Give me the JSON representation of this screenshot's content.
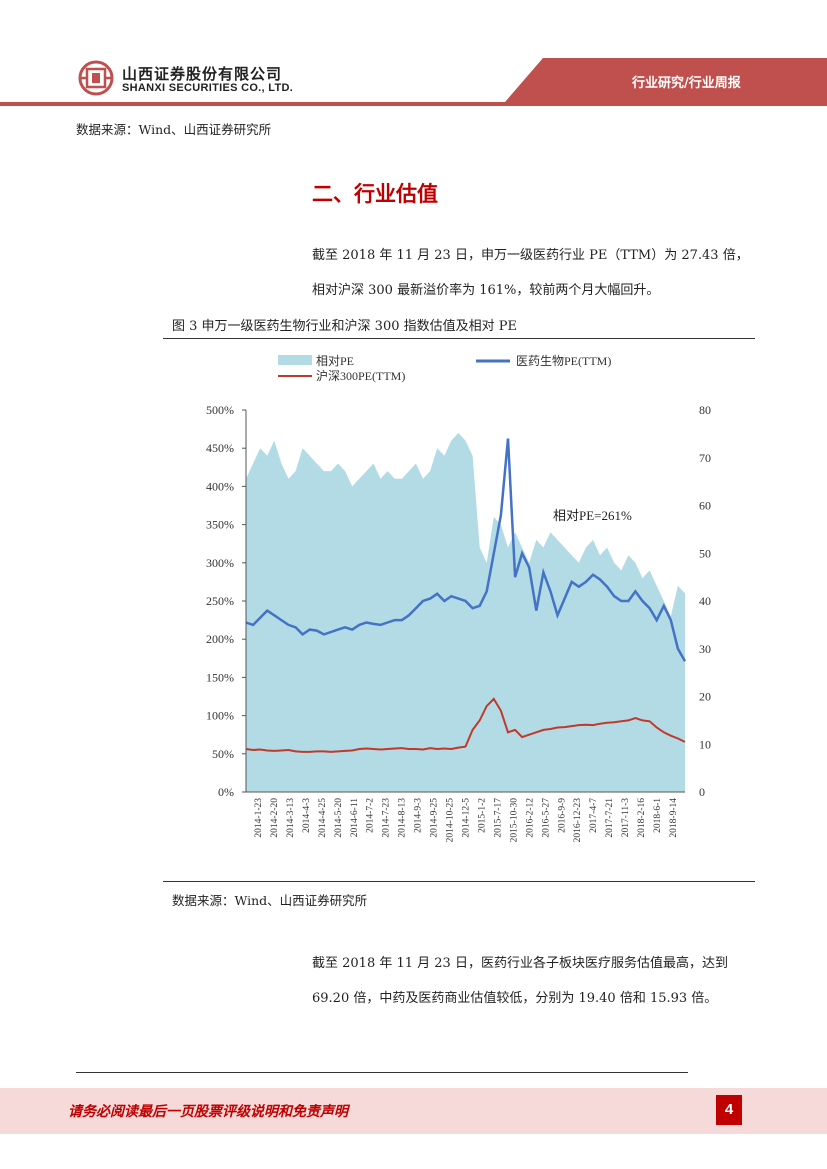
{
  "header": {
    "company_cn": "山西证券股份有限公司",
    "company_en": "SHANXI SECURITIES CO., LTD.",
    "report_tag": "行业研究/行业周报",
    "brand_color": "#c0504d"
  },
  "source_top": "数据来源：Wind、山西证券研究所",
  "section": {
    "title": "二、行业估值"
  },
  "paragraph1": {
    "line1": "截至 2018 年 11 月 23 日，申万一级医药行业 PE（TTM）为 27.43 倍，",
    "line2": "相对沪深 300 最新溢价率为 161%，较前两个月大幅回升。"
  },
  "figure": {
    "title": "图 3  申万一级医药生物行业和沪深 300 指数估值及相对 PE",
    "source": "数据来源：Wind、山西证券研究所"
  },
  "chart_data": {
    "type": "area",
    "title": "",
    "legend": [
      "相对PE",
      "医药生物PE(TTM)",
      "沪深300PE(TTM)"
    ],
    "legend_position": "top",
    "annotation": "相对PE=261%",
    "y_left": {
      "ticks": [
        "0%",
        "50%",
        "100%",
        "150%",
        "200%",
        "250%",
        "300%",
        "350%",
        "400%",
        "450%",
        "500%"
      ],
      "range": [
        0,
        5
      ]
    },
    "y_right": {
      "ticks": [
        "0",
        "10",
        "20",
        "30",
        "40",
        "50",
        "60",
        "70",
        "80"
      ],
      "range": [
        0,
        80
      ]
    },
    "x_tick_labels": [
      "2014-1-23",
      "2014-2-20",
      "2014-3-13",
      "2014-4-3",
      "2014-4-25",
      "2014-5-20",
      "2014-6-11",
      "2014-7-2",
      "2014-7-23",
      "2014-8-13",
      "2014-9-3",
      "2014-9-25",
      "2014-10-25",
      "2014-12-5",
      "2015-1-2",
      "2015-7-17",
      "2015-10-30",
      "2016-2-12",
      "2016-5-27",
      "2016-9-9",
      "2016-12-23",
      "2017-4-7",
      "2017-7-21",
      "2017-11-3",
      "2018-2-16",
      "2018-6-1",
      "2018-9-14"
    ],
    "relative_pe": [
      4.1,
      4.3,
      4.5,
      4.4,
      4.6,
      4.3,
      4.1,
      4.2,
      4.5,
      4.4,
      4.3,
      4.2,
      4.2,
      4.3,
      4.2,
      4.0,
      4.1,
      4.2,
      4.3,
      4.1,
      4.2,
      4.1,
      4.1,
      4.2,
      4.3,
      4.1,
      4.2,
      4.5,
      4.4,
      4.6,
      4.7,
      4.6,
      4.4,
      3.2,
      3.0,
      3.6,
      3.5,
      3.2,
      3.4,
      3.2,
      3.0,
      3.3,
      3.2,
      3.4,
      3.3,
      3.2,
      3.1,
      3.0,
      3.2,
      3.3,
      3.1,
      3.2,
      3.0,
      2.9,
      3.1,
      3.0,
      2.8,
      2.9,
      2.7,
      2.5,
      2.3,
      2.7,
      2.6
    ],
    "pharma_pe": [
      35.5,
      35.0,
      36.5,
      38.0,
      37.0,
      36.0,
      35.0,
      34.5,
      33.0,
      34.0,
      33.8,
      33.0,
      33.5,
      34.0,
      34.5,
      34.0,
      35.0,
      35.5,
      35.2,
      35.0,
      35.5,
      36.0,
      36.0,
      37.0,
      38.5,
      40.0,
      40.5,
      41.5,
      40.0,
      41.0,
      40.5,
      40.0,
      38.5,
      39.0,
      42.0,
      50.0,
      58.0,
      74.0,
      45.0,
      50.0,
      47.0,
      38.0,
      46.0,
      42.0,
      37.0,
      40.5,
      44.0,
      43.0,
      44.0,
      45.5,
      44.5,
      43.0,
      41.0,
      40.0,
      40.0,
      42.0,
      40.0,
      38.5,
      36.0,
      39.0,
      36.0,
      30.0,
      27.4
    ],
    "hs300_pe": [
      9.0,
      8.8,
      8.9,
      8.7,
      8.6,
      8.7,
      8.8,
      8.5,
      8.4,
      8.4,
      8.5,
      8.5,
      8.4,
      8.5,
      8.6,
      8.7,
      9.0,
      9.1,
      9.0,
      8.9,
      9.0,
      9.1,
      9.2,
      9.0,
      9.0,
      8.9,
      9.2,
      9.0,
      9.1,
      9.0,
      9.3,
      9.5,
      13.0,
      15.0,
      18.0,
      19.5,
      17.0,
      12.5,
      13.0,
      11.5,
      12.0,
      12.5,
      13.0,
      13.2,
      13.5,
      13.6,
      13.8,
      14.0,
      14.1,
      14.0,
      14.3,
      14.5,
      14.6,
      14.8,
      15.0,
      15.5,
      15.0,
      14.8,
      13.5,
      12.5,
      11.8,
      11.2,
      10.5
    ]
  },
  "paragraph2": {
    "line1": "截至 2018 年 11 月 23 日，医药行业各子板块医疗服务估值最高，达到",
    "line2": "69.20 倍，中药及医药商业估值较低，分别为 19.40 倍和 15.93 倍。"
  },
  "footer": {
    "disclaimer": "请务必阅读最后一页股票评级说明和免责声明",
    "page_number": "4"
  }
}
